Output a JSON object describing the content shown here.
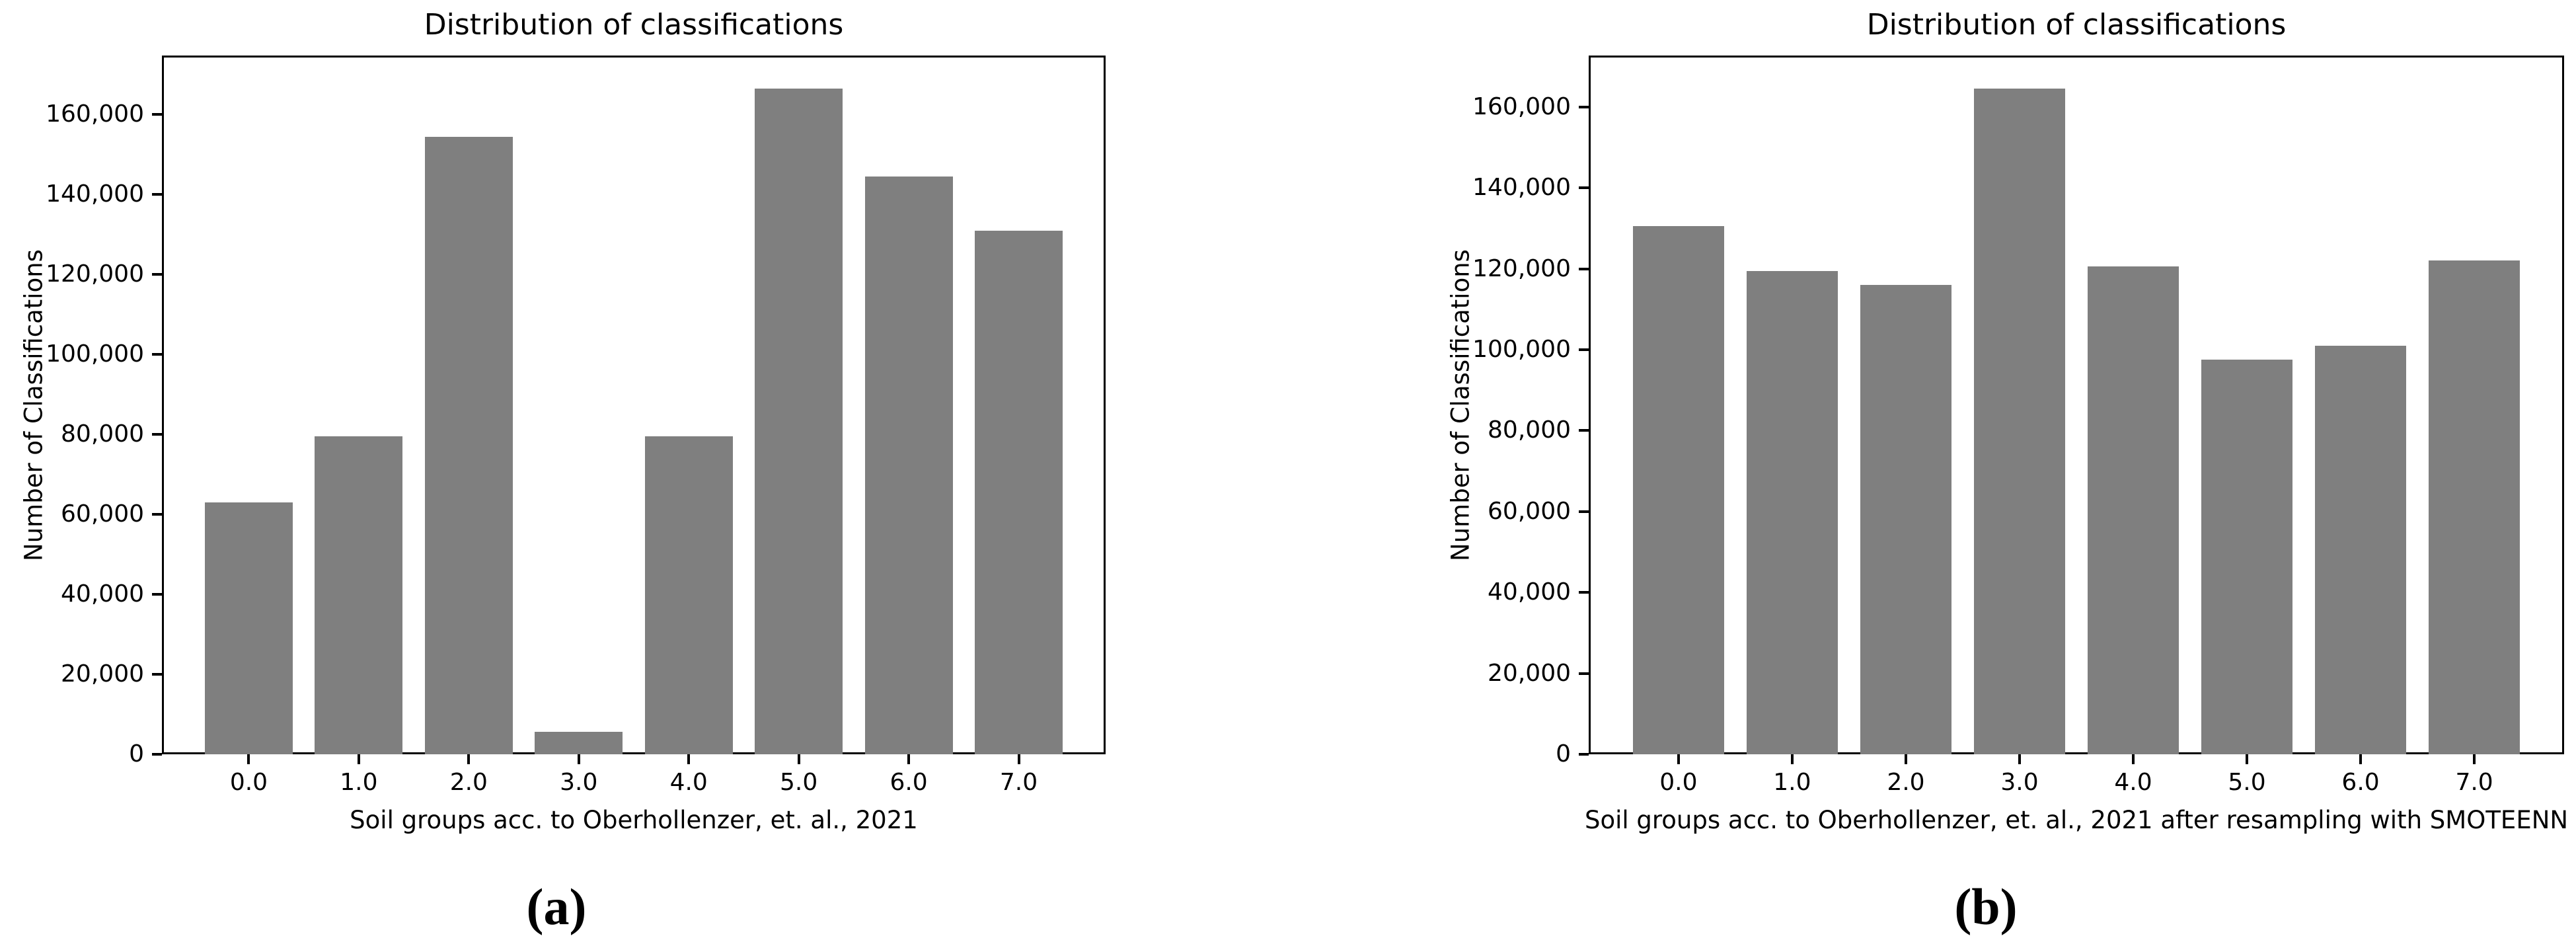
{
  "figure": {
    "background": "#ffffff",
    "text_color": "#000000",
    "panel_a_caption": "(a)",
    "panel_b_caption": "(b)"
  },
  "chart_data": [
    {
      "type": "bar",
      "panel_label": "(a)",
      "title": "Distribution of classifications",
      "xlabel": "Soil groups acc. to Oberhollenzer, et. al., 2021",
      "ylabel": "Number of Classifications",
      "categories": [
        "0.0",
        "1.0",
        "2.0",
        "3.0",
        "4.0",
        "5.0",
        "6.0",
        "7.0"
      ],
      "values": [
        63000,
        79500,
        154500,
        5700,
        79500,
        166500,
        144500,
        131000
      ],
      "ylim": [
        0,
        174800
      ],
      "yticks": [
        0,
        20000,
        40000,
        60000,
        80000,
        100000,
        120000,
        140000,
        160000
      ],
      "ytick_labels": [
        "0",
        "20,000",
        "40,000",
        "60,000",
        "80,000",
        "100,000",
        "120,000",
        "140,000",
        "160,000"
      ],
      "bar_color": "#7f7f7f",
      "axis_color": "#000000",
      "grid": false,
      "legend": "none"
    },
    {
      "type": "bar",
      "panel_label": "(b)",
      "title": "Distribution of classifications",
      "xlabel": "Soil groups acc. to Oberhollenzer, et. al., 2021 after resampling with SMOTEENN",
      "ylabel": "Number of Classifications",
      "categories": [
        "0.0",
        "1.0",
        "2.0",
        "3.0",
        "4.0",
        "5.0",
        "6.0",
        "7.0"
      ],
      "values": [
        130500,
        119500,
        116000,
        164500,
        120500,
        97500,
        101000,
        122000
      ],
      "ylim": [
        0,
        172700
      ],
      "yticks": [
        0,
        20000,
        40000,
        60000,
        80000,
        100000,
        120000,
        140000,
        160000
      ],
      "ytick_labels": [
        "0",
        "20,000",
        "40,000",
        "60,000",
        "80,000",
        "100,000",
        "120,000",
        "140,000",
        "160,000"
      ],
      "bar_color": "#7f7f7f",
      "axis_color": "#000000",
      "grid": false,
      "legend": "none"
    }
  ]
}
